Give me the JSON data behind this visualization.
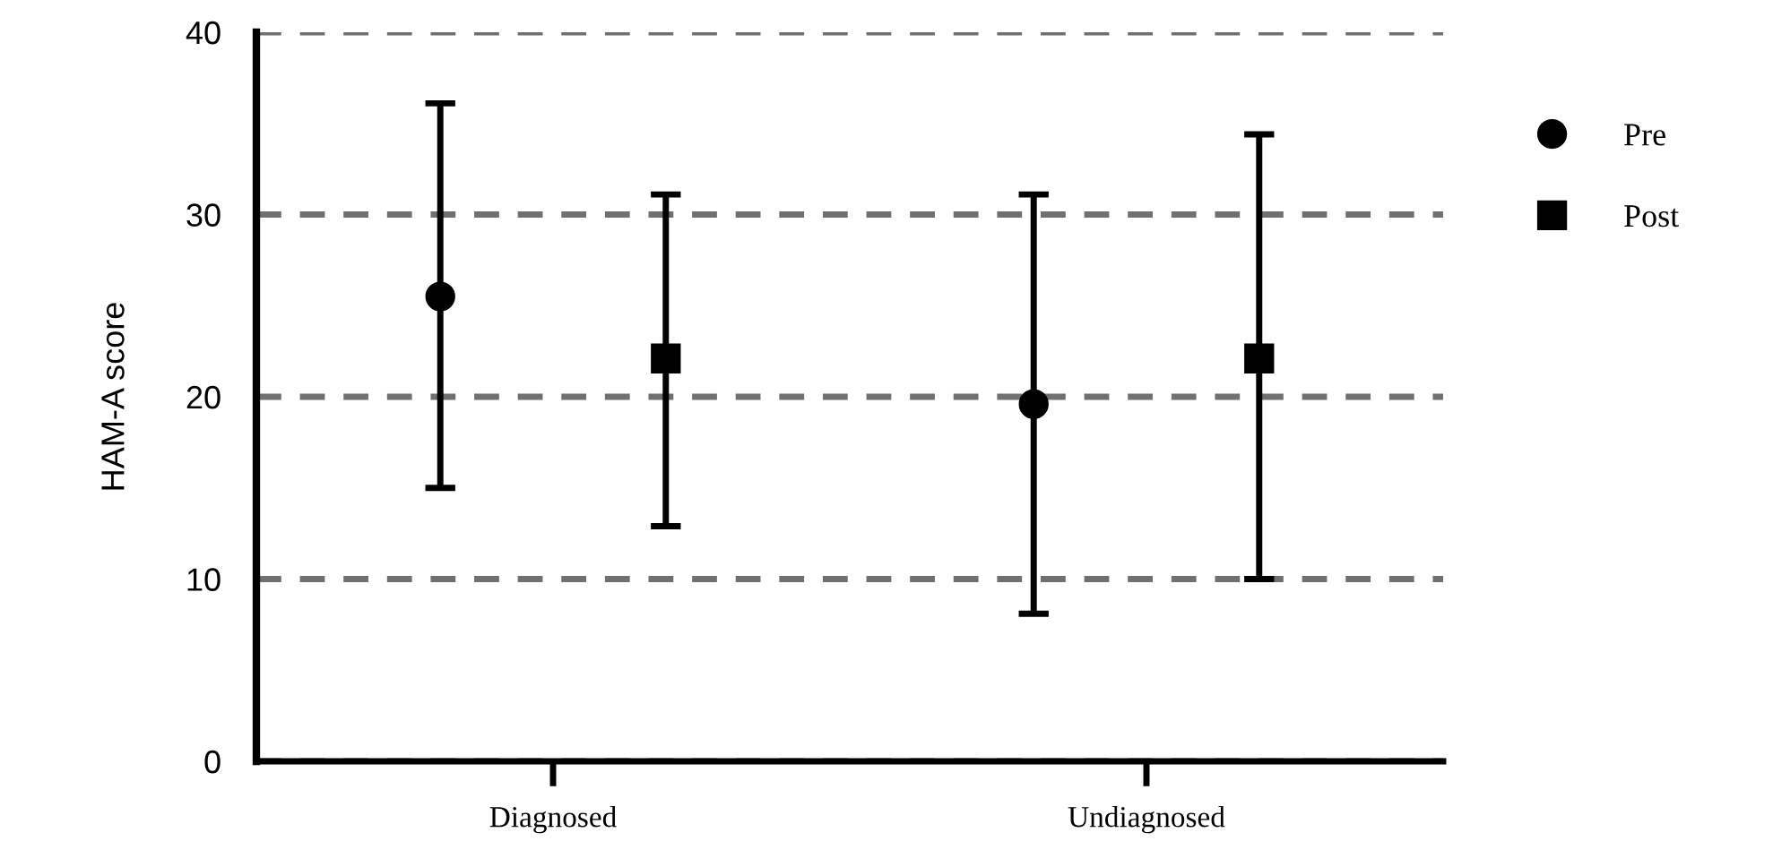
{
  "chart_data": {
    "type": "scatter",
    "ylabel": "HAM-A score",
    "categories": [
      "Diagnosed",
      "Undiagnosed"
    ],
    "series": [
      {
        "name": "Pre",
        "color": "#000000",
        "marker": "circle",
        "values": [
          25.5,
          19.6
        ],
        "errors": [
          [
            15.0,
            36.1
          ],
          [
            8.1,
            31.1
          ]
        ]
      },
      {
        "name": "Post",
        "color": "#000000",
        "marker": "square",
        "values": [
          22.1,
          22.1
        ],
        "errors": [
          [
            12.9,
            31.1
          ],
          [
            10.0,
            34.4
          ]
        ]
      }
    ],
    "ylim": [
      0,
      40
    ],
    "yticks": [
      0,
      10,
      20,
      30,
      40
    ],
    "grid": "y",
    "legend": "right"
  }
}
